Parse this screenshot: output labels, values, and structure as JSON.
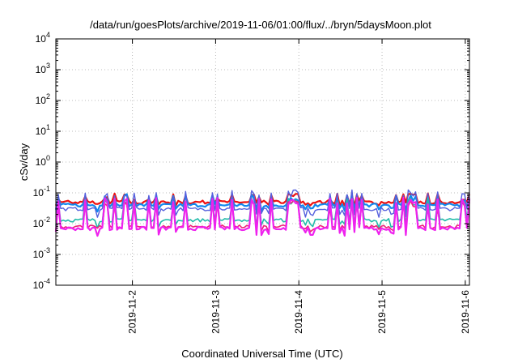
{
  "chart_data": {
    "type": "line",
    "title": "/data/run/goesPlots/archive/2019-11-06/01:00/flux/../bryn/5daysMoon.plot",
    "xlabel": "Coordinated Universal Time (UTC)",
    "ylabel": "cSv/day",
    "y_scale": "log",
    "ylim_exponent": [
      -4,
      4
    ],
    "y_tick_base": "10",
    "y_tick_exponents": [
      "-4",
      "-3",
      "-2",
      "-1",
      "0",
      "1",
      "2",
      "3",
      "4"
    ],
    "x_range_days": [
      1.08,
      6.05
    ],
    "x_tick_labels": [
      "2019-11-2",
      "2019-11-3",
      "2019-11-4",
      "2019-11-5",
      "2019-11-6"
    ],
    "x_tick_days": [
      2,
      3,
      4,
      5,
      6
    ],
    "grid": true,
    "legend": "none",
    "samples": 170,
    "series": [
      {
        "color": "#ee1111",
        "level": 0.05,
        "spike": 0.07,
        "dip": 0.045,
        "width": 2.2
      },
      {
        "color": "#1188ee",
        "level": 0.04,
        "spike": 0.065,
        "dip": 0.03,
        "width": 2.2
      },
      {
        "color": "#5560dd",
        "level": 0.03,
        "spike": 0.09,
        "dip": 0.02,
        "width": 1.4
      },
      {
        "color": "#22bbaa",
        "level": 0.013,
        "spike": 0.05,
        "dip": 0.009,
        "width": 1.6
      },
      {
        "color": "#ee2277",
        "level": 0.008,
        "spike": 0.04,
        "dip": 0.0065,
        "width": 1.6
      },
      {
        "color": "#ee22ee",
        "level": 0.007,
        "spike": 0.05,
        "dip": 0.005,
        "width": 2.2
      }
    ]
  }
}
